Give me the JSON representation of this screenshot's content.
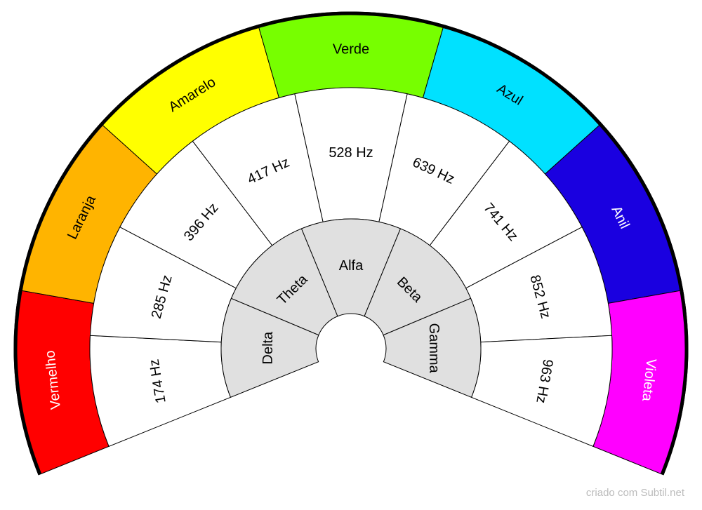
{
  "colors": [
    {
      "label": "Vermelho",
      "color": "#ff0000"
    },
    {
      "label": "Laranja",
      "color": "#ffb400"
    },
    {
      "label": "Amarelo",
      "color": "#ffff00"
    },
    {
      "label": "Verde",
      "color": "#77ff00"
    },
    {
      "label": "Azul",
      "color": "#00e1ff"
    },
    {
      "label": "Anil",
      "color": "#1a00e0"
    },
    {
      "label": "Violeta",
      "color": "#ff00ff"
    }
  ],
  "frequencies": [
    "174 Hz",
    "285 Hz",
    "396 Hz",
    "417 Hz",
    "528 Hz",
    "639 Hz",
    "741 Hz",
    "852 Hz",
    "963 Hz"
  ],
  "waves": [
    "Delta",
    "Theta",
    "Alfa",
    "Beta",
    "Gamma"
  ],
  "footer": "criado com Subtil.net"
}
